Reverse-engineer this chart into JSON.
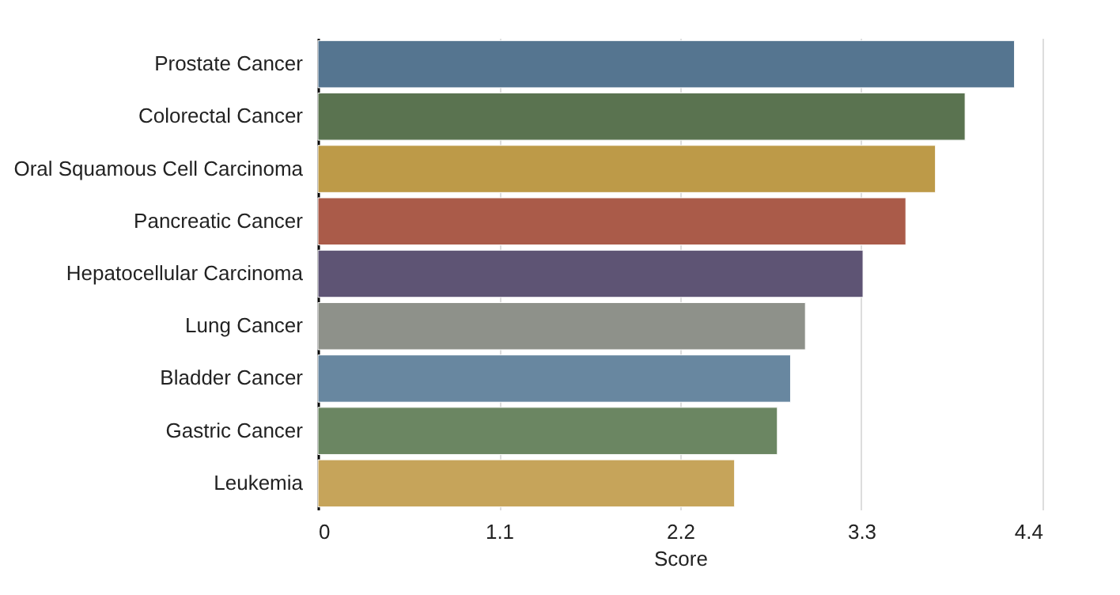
{
  "chart_data": {
    "type": "bar",
    "orientation": "horizontal",
    "xlabel": "Score",
    "categories": [
      "Prostate Cancer",
      "Colorectal Cancer",
      "Oral Squamous Cell Carcinoma",
      "Pancreatic Cancer",
      "Hepatocellular Carcinoma",
      "Lung Cancer",
      "Bladder Cancer",
      "Gastric Cancer",
      "Leukemia"
    ],
    "values": [
      4.23,
      3.93,
      3.75,
      3.57,
      3.31,
      2.96,
      2.87,
      2.79,
      2.53
    ],
    "colors": [
      "#557590",
      "#5a7350",
      "#bd9a48",
      "#aa5b49",
      "#5e5474",
      "#8e918a",
      "#6887a0",
      "#6b8662",
      "#c6a45a"
    ],
    "xlim": [
      0,
      4.4
    ],
    "xticks": [
      0,
      1.1,
      2.2,
      3.3,
      4.4
    ],
    "grid": "x"
  }
}
